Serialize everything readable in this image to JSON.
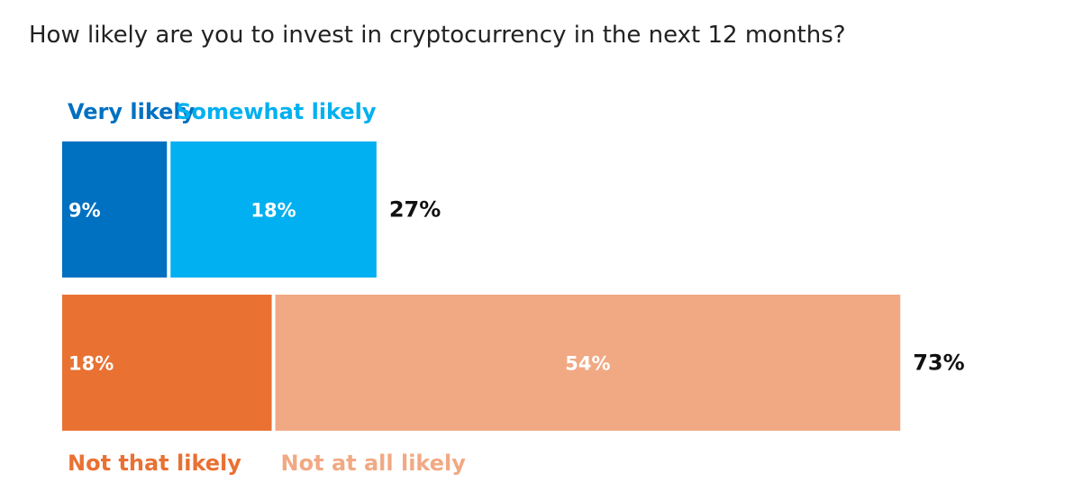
{
  "chart_data": {
    "type": "bar",
    "orientation": "horizontal",
    "stacked": true,
    "title": "How likely are you to invest in cryptocurrency in the next 12 months?",
    "grid": false,
    "xlim": [
      0,
      100
    ],
    "groups": [
      {
        "total_label": "27%",
        "legend_position": "top",
        "segments": [
          {
            "name": "Very likely",
            "value": 9,
            "label": "9%",
            "color": "#0070C0",
            "label_align": "start"
          },
          {
            "name": "Somewhat likely",
            "value": 18,
            "label": "18%",
            "color": "#00B0F0",
            "label_align": "center"
          }
        ]
      },
      {
        "total_label": "73%",
        "legend_position": "bottom",
        "segments": [
          {
            "name": "Not that likely",
            "value": 18,
            "label": "18%",
            "color": "#E97132",
            "label_align": "start"
          },
          {
            "name": "Not at all likely",
            "value": 54,
            "label": "54%",
            "color": "#F1A983",
            "label_align": "center"
          }
        ]
      }
    ]
  }
}
